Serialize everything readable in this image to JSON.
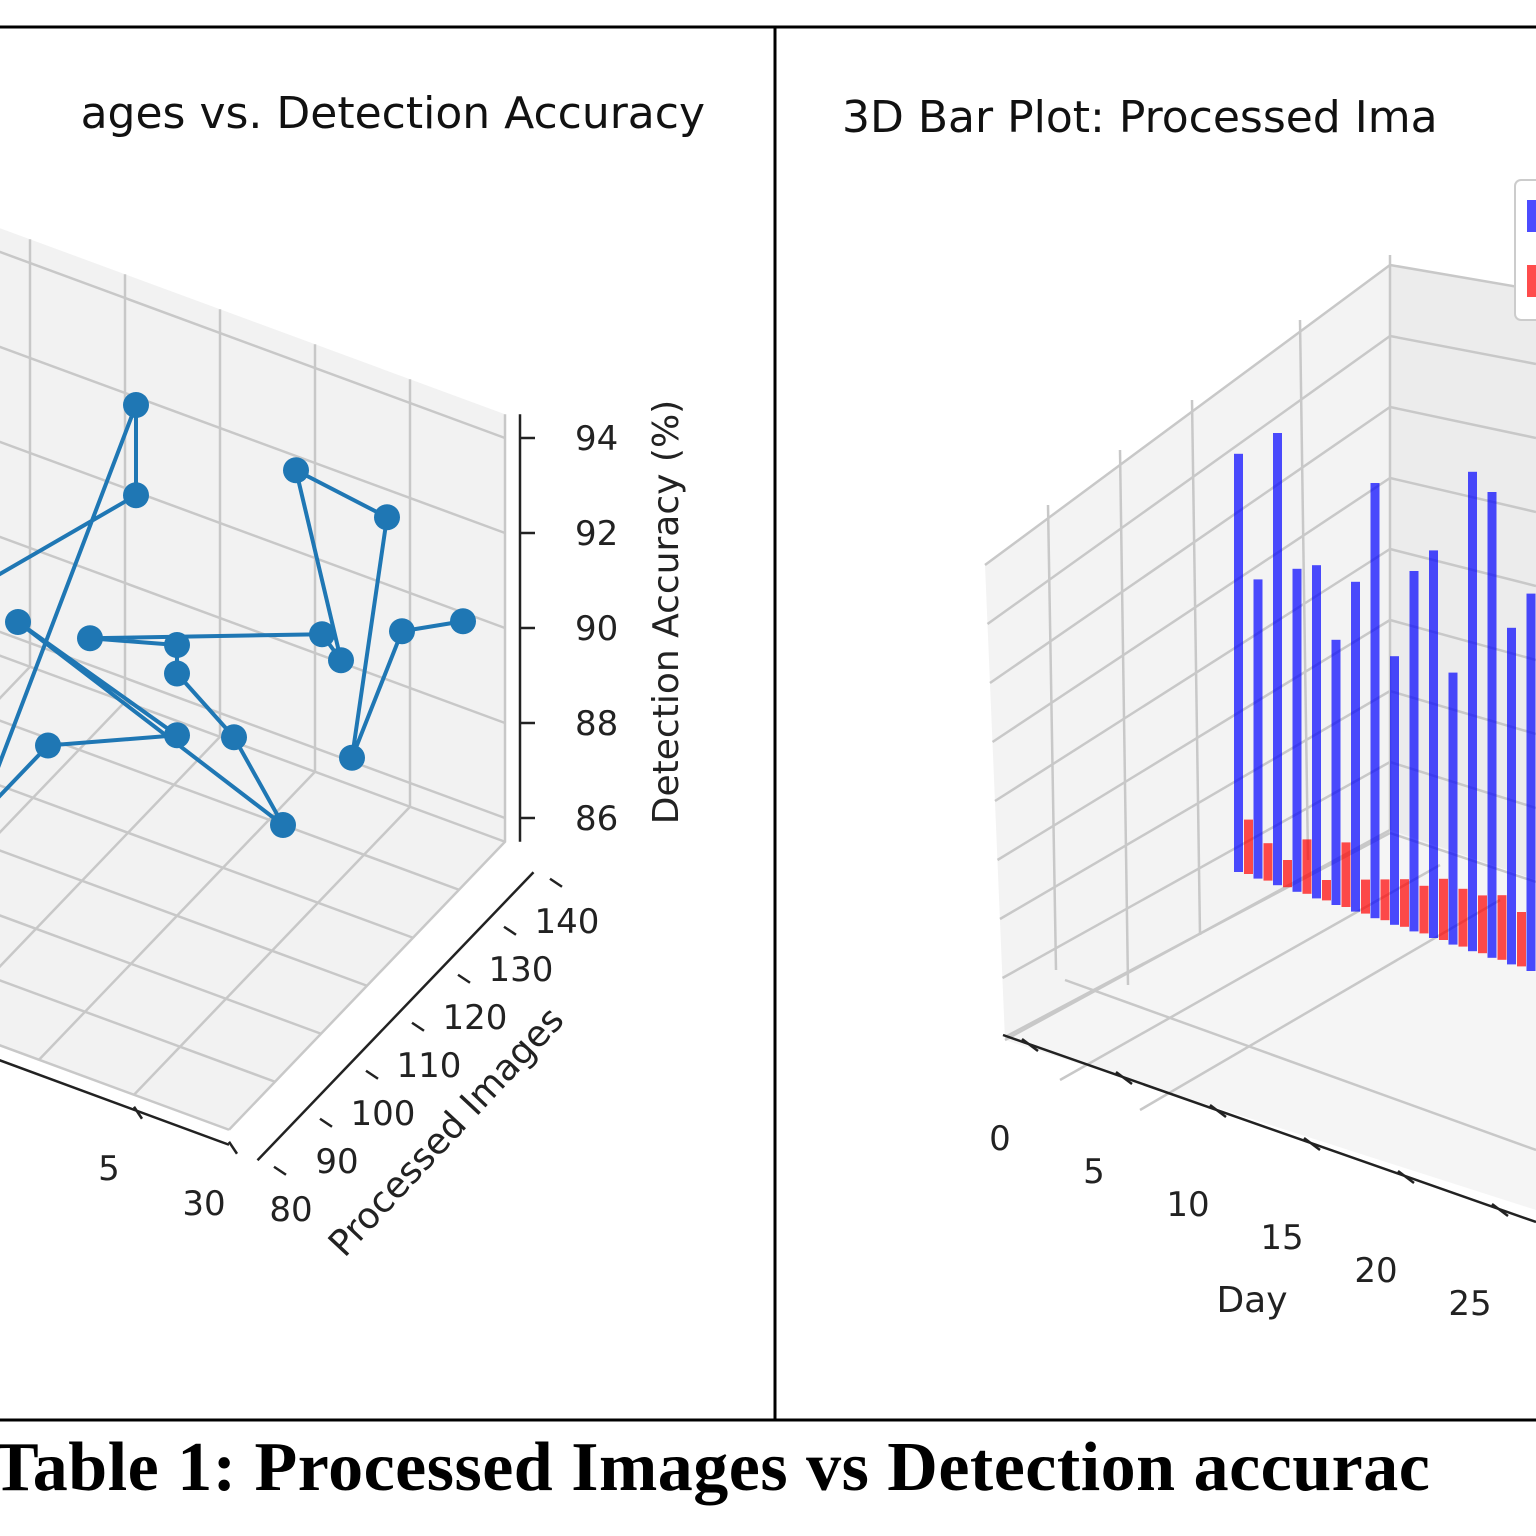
{
  "caption": "Table 1: Processed Images vs Detection accurac",
  "chart_data": [
    {
      "type": "line",
      "projection": "3d",
      "title": "ages vs. Detection Accuracy",
      "xlabel": "",
      "ylabel": "Processed Images",
      "zlabel": "Detection Accuracy (%)",
      "x_ticks": [
        "5",
        "30"
      ],
      "y_ticks": [
        "80",
        "90",
        "100",
        "110",
        "120",
        "130",
        "140"
      ],
      "z_ticks": [
        "86",
        "88",
        "90",
        "92",
        "94"
      ],
      "ylim": [
        80,
        140
      ],
      "zlim": [
        85.5,
        94.5
      ],
      "grid": true,
      "color": "#1f77b4",
      "marker": "circle",
      "points": [
        {
          "day": 6,
          "images": 120,
          "accuracy": 89.1
        },
        {
          "day": 13,
          "images": 130,
          "accuracy": 91.3
        },
        {
          "day": 13,
          "images": 130,
          "accuracy": 93.2
        },
        {
          "day": 12,
          "images": 100,
          "accuracy": 87.4
        },
        {
          "day": 12,
          "images": 115,
          "accuracy": 87.4
        },
        {
          "day": 20,
          "images": 110,
          "accuracy": 89.3
        },
        {
          "day": 8,
          "images": 125,
          "accuracy": 88.4
        },
        {
          "day": 28,
          "images": 100,
          "accuracy": 89.6
        },
        {
          "day": 23,
          "images": 110,
          "accuracy": 89.7
        },
        {
          "day": 20,
          "images": 110,
          "accuracy": 90.6
        },
        {
          "day": 20,
          "images": 110,
          "accuracy": 91.2
        },
        {
          "day": 13,
          "images": 120,
          "accuracy": 89.3
        },
        {
          "day": 24,
          "images": 125,
          "accuracy": 90.5
        },
        {
          "day": 25,
          "images": 125,
          "accuracy": 90.1
        },
        {
          "day": 19,
          "images": 140,
          "accuracy": 91.7
        },
        {
          "day": 25,
          "images": 135,
          "accuracy": 92.1
        },
        {
          "day": 28,
          "images": 115,
          "accuracy": 89.5
        },
        {
          "day": 27,
          "images": 130,
          "accuracy": 90.5
        },
        {
          "day": 29,
          "images": 135,
          "accuracy": 90.5
        }
      ]
    },
    {
      "type": "bar",
      "projection": "3d",
      "title": "3D Bar Plot: Processed Ima",
      "xlabel": "Day",
      "x_ticks": [
        "0",
        "5",
        "10",
        "15",
        "20",
        "25"
      ],
      "grid": true,
      "legend": "top-right",
      "series": [
        {
          "color": "#0000ff",
          "values": [
            123,
            88,
            133,
            95,
            98,
            78,
            97,
            128,
            79,
            106,
            114,
            80,
            141,
            137,
            99,
            111
          ]
        },
        {
          "color": "#ff0000",
          "values": [
            16,
            11,
            8,
            16,
            6,
            19,
            10,
            12,
            14,
            14,
            18,
            17,
            17,
            19,
            16,
            19
          ]
        }
      ]
    }
  ]
}
